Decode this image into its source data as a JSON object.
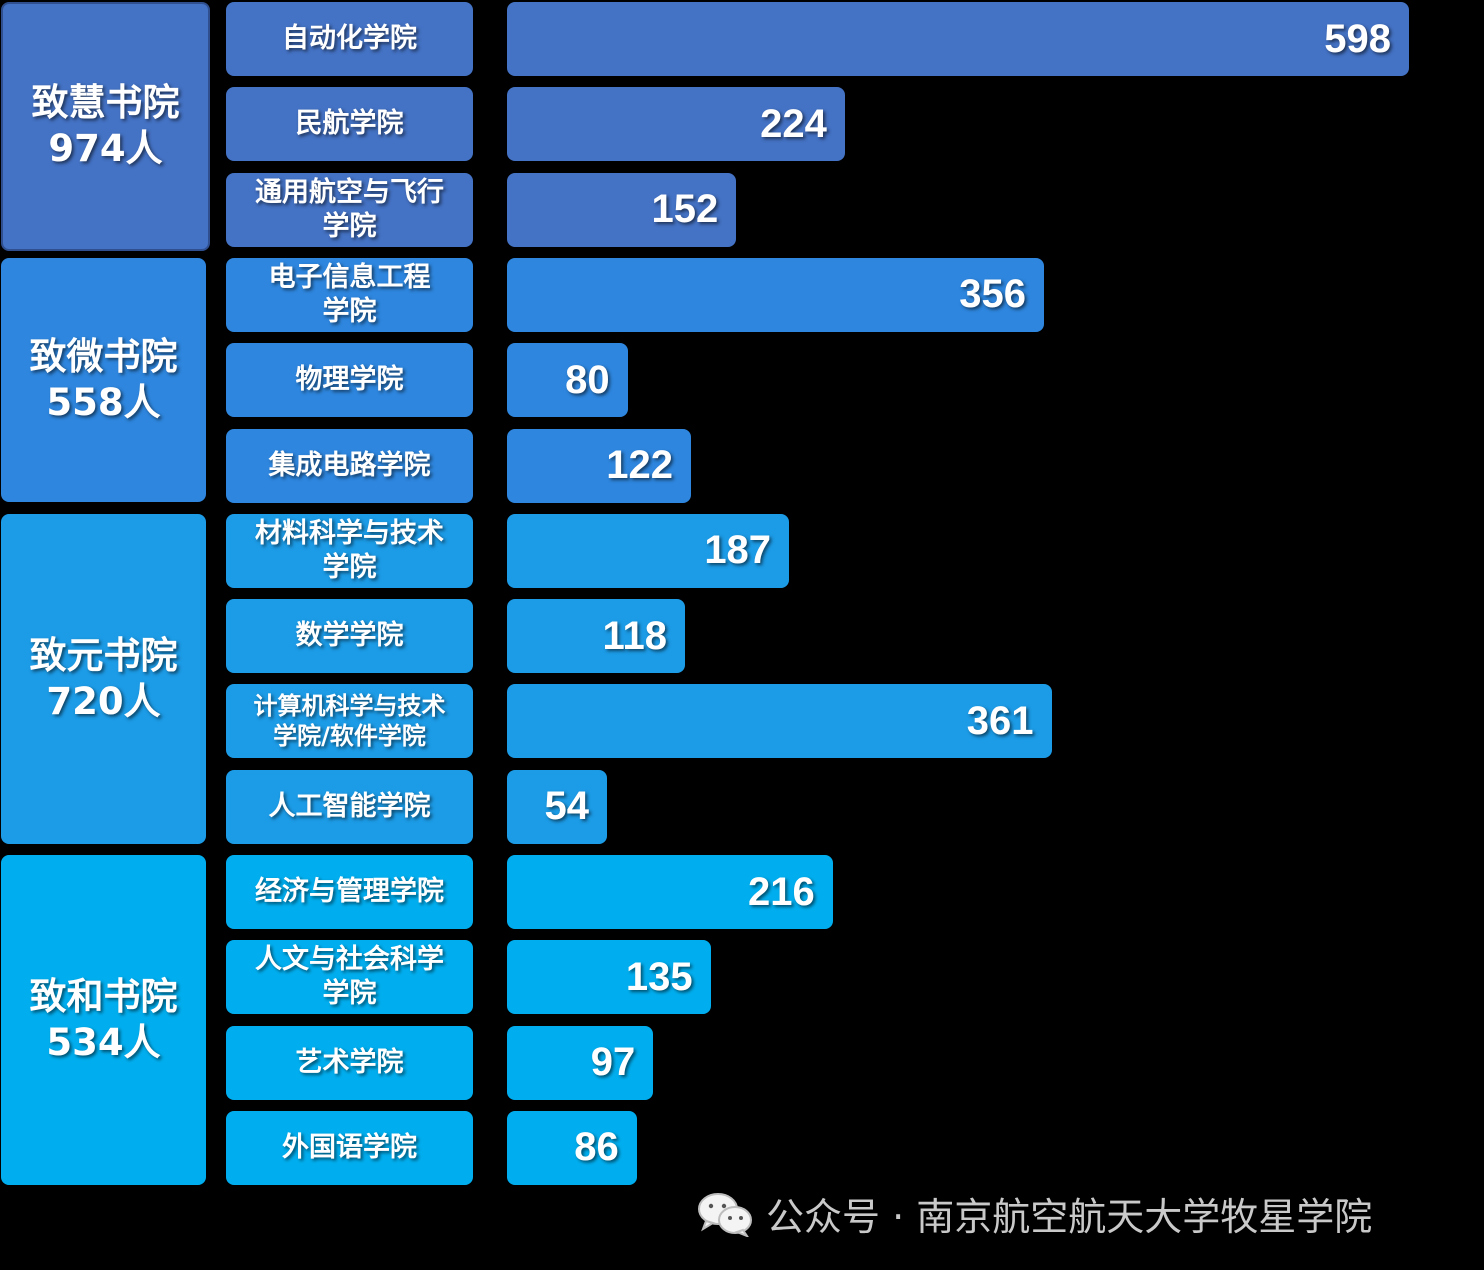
{
  "chart_data": {
    "type": "bar",
    "orientation": "horizontal",
    "title": "",
    "xlabel": "",
    "ylabel": "",
    "xlim": [
      0,
      598
    ],
    "grid": false,
    "groups": [
      {
        "name": "致慧书院",
        "total": "974人",
        "color": "#4472C4",
        "schools": [
          {
            "label": "自动化学院",
            "value": 598
          },
          {
            "label": "民航学院",
            "value": 224
          },
          {
            "label": "通用航空与飞行学院",
            "value": 152
          }
        ]
      },
      {
        "name": "致微书院",
        "total": "558人",
        "color": "#2E86DE",
        "schools": [
          {
            "label": "电子信息工程学院",
            "value": 356
          },
          {
            "label": "物理学院",
            "value": 80
          },
          {
            "label": "集成电路学院",
            "value": 122
          }
        ]
      },
      {
        "name": "致元书院",
        "total": "720人",
        "color": "#1C9BE6",
        "schools": [
          {
            "label": "材料科学与技术学院",
            "value": 187
          },
          {
            "label": "数学学院",
            "value": 118
          },
          {
            "label": "计算机科学与技术学院/软件学院",
            "value": 361
          },
          {
            "label": "人工智能学院",
            "value": 54
          }
        ]
      },
      {
        "name": "致和书院",
        "total": "534人",
        "color": "#00AEEF",
        "schools": [
          {
            "label": "经济与管理学院",
            "value": 216
          },
          {
            "label": "人文与社会科学学院",
            "value": 135
          },
          {
            "label": "艺术学院",
            "value": 97
          },
          {
            "label": "外国语学院",
            "value": 86
          }
        ]
      }
    ]
  },
  "watermark": {
    "icon": "wechat-icon",
    "text": "公众号 · 南京航空航天大学牧星学院"
  }
}
